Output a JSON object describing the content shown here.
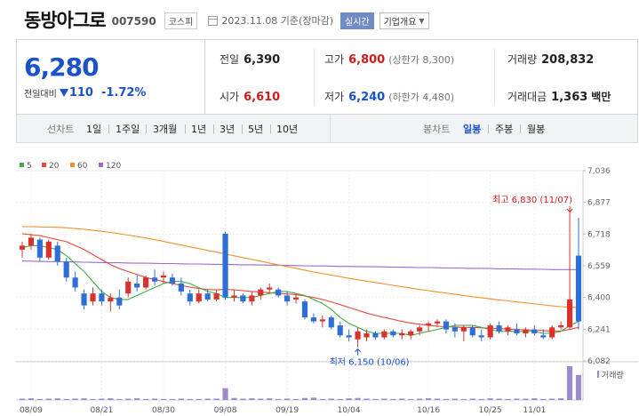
{
  "header": {
    "stock_name": "동방아그로",
    "stock_code": "007590",
    "market": "코스피",
    "date": "2023.11.08 기준(장마감)",
    "realtime": "실시간",
    "overview": "기업개요"
  },
  "price": {
    "current": "6,280",
    "change_label": "전일대비",
    "change_value": "110",
    "change_rate": "-1.72%"
  },
  "stats": {
    "prev_label": "전일",
    "prev_value": "6,390",
    "high_label": "고가",
    "high_value": "6,800",
    "upper_limit": "(상한가 8,300)",
    "volume_label": "거래량",
    "volume_value": "208,832",
    "open_label": "시가",
    "open_value": "6,610",
    "low_label": "저가",
    "low_value": "6,240",
    "lower_limit": "(하한가 4,480)",
    "amount_label": "거래대금",
    "amount_value": "1,363",
    "amount_unit": "백만"
  },
  "period_bar": {
    "line_label": "선차트",
    "periods": [
      "1일",
      "1주일",
      "3개월",
      "1년",
      "3년",
      "5년",
      "10년"
    ],
    "candle_label": "봉차트",
    "candle_periods": [
      "일봉",
      "주봉",
      "월봉"
    ],
    "active": "일봉"
  },
  "chart_data": {
    "type": "candlestick",
    "ma_legend": [
      {
        "name": "5",
        "color": "#3fae49"
      },
      {
        "name": "20",
        "color": "#e8453c"
      },
      {
        "name": "60",
        "color": "#f0922b"
      },
      {
        "name": "120",
        "color": "#9a6cc9"
      }
    ],
    "up_color": "#d9322c",
    "down_color": "#2d6fd6",
    "y_ticks": [
      7036,
      6877,
      6718,
      6559,
      6400,
      6241,
      6082
    ],
    "ylim": [
      6082,
      7036
    ],
    "x_ticks": [
      {
        "label": "08/09",
        "i": 1
      },
      {
        "label": "08/21",
        "i": 9
      },
      {
        "label": "08/30",
        "i": 16
      },
      {
        "label": "09/08",
        "i": 23
      },
      {
        "label": "09/19",
        "i": 30
      },
      {
        "label": "10/04",
        "i": 37
      },
      {
        "label": "10/16",
        "i": 46
      },
      {
        "label": "10/25",
        "i": 53
      },
      {
        "label": "11/01",
        "i": 58
      }
    ],
    "candles": [
      [
        6640,
        6680,
        6600,
        6660
      ],
      [
        6660,
        6720,
        6640,
        6700
      ],
      [
        6690,
        6700,
        6580,
        6600
      ],
      [
        6600,
        6690,
        6590,
        6680
      ],
      [
        6660,
        6680,
        6560,
        6580
      ],
      [
        6580,
        6600,
        6480,
        6500
      ],
      [
        6500,
        6530,
        6430,
        6450
      ],
      [
        6420,
        6440,
        6340,
        6360
      ],
      [
        6380,
        6450,
        6360,
        6420
      ],
      [
        6420,
        6440,
        6360,
        6380
      ],
      [
        6380,
        6420,
        6330,
        6400
      ],
      [
        6400,
        6440,
        6340,
        6360
      ],
      [
        6420,
        6500,
        6400,
        6480
      ],
      [
        6470,
        6510,
        6430,
        6450
      ],
      [
        6450,
        6510,
        6440,
        6500
      ],
      [
        6500,
        6540,
        6460,
        6480
      ],
      [
        6500,
        6530,
        6470,
        6510
      ],
      [
        6500,
        6520,
        6460,
        6470
      ],
      [
        6470,
        6500,
        6410,
        6430
      ],
      [
        6420,
        6440,
        6360,
        6380
      ],
      [
        6380,
        6440,
        6370,
        6420
      ],
      [
        6420,
        6440,
        6380,
        6390
      ],
      [
        6390,
        6440,
        6380,
        6420
      ],
      [
        6720,
        6730,
        6390,
        6400
      ],
      [
        6400,
        6440,
        6380,
        6410
      ],
      [
        6410,
        6420,
        6370,
        6380
      ],
      [
        6380,
        6430,
        6360,
        6410
      ],
      [
        6410,
        6450,
        6390,
        6440
      ],
      [
        6440,
        6470,
        6420,
        6450
      ],
      [
        6440,
        6450,
        6400,
        6410
      ],
      [
        6410,
        6430,
        6360,
        6380
      ],
      [
        6390,
        6420,
        6370,
        6400
      ],
      [
        6380,
        6390,
        6290,
        6300
      ],
      [
        6300,
        6320,
        6270,
        6280
      ],
      [
        6280,
        6310,
        6250,
        6290
      ],
      [
        6300,
        6310,
        6240,
        6250
      ],
      [
        6260,
        6280,
        6200,
        6210
      ],
      [
        6210,
        6240,
        6180,
        6200
      ],
      [
        6190,
        6250,
        6150,
        6230
      ],
      [
        6200,
        6240,
        6180,
        6220
      ],
      [
        6220,
        6230,
        6190,
        6200
      ],
      [
        6200,
        6240,
        6190,
        6230
      ],
      [
        6230,
        6240,
        6200,
        6210
      ],
      [
        6210,
        6240,
        6190,
        6220
      ],
      [
        6210,
        6240,
        6190,
        6230
      ],
      [
        6230,
        6260,
        6210,
        6250
      ],
      [
        6260,
        6280,
        6230,
        6270
      ],
      [
        6270,
        6290,
        6250,
        6280
      ],
      [
        6280,
        6290,
        6220,
        6240
      ],
      [
        6250,
        6270,
        6200,
        6230
      ],
      [
        6230,
        6260,
        6180,
        6250
      ],
      [
        6250,
        6260,
        6200,
        6210
      ],
      [
        6210,
        6240,
        6180,
        6200
      ],
      [
        6200,
        6270,
        6190,
        6260
      ],
      [
        6260,
        6280,
        6220,
        6230
      ],
      [
        6230,
        6260,
        6210,
        6250
      ],
      [
        6240,
        6270,
        6210,
        6220
      ],
      [
        6220,
        6250,
        6200,
        6240
      ],
      [
        6240,
        6260,
        6210,
        6220
      ],
      [
        6210,
        6240,
        6190,
        6200
      ],
      [
        6200,
        6260,
        6190,
        6250
      ],
      [
        6250,
        6280,
        6240,
        6260
      ],
      [
        6250,
        6830,
        6240,
        6390
      ],
      [
        6610,
        6800,
        6240,
        6280
      ]
    ],
    "ma5": [
      6650,
      6660,
      6660,
      6650,
      6640,
      6610,
      6570,
      6530,
      6480,
      6430,
      6400,
      6390,
      6390,
      6410,
      6430,
      6450,
      6470,
      6480,
      6480,
      6470,
      6450,
      6430,
      6420,
      6400,
      6400,
      6400,
      6400,
      6410,
      6420,
      6430,
      6430,
      6420,
      6410,
      6390,
      6370,
      6340,
      6300,
      6270,
      6250,
      6230,
      6220,
      6220,
      6220,
      6220,
      6210,
      6220,
      6230,
      6240,
      6250,
      6260,
      6260,
      6260,
      6250,
      6240,
      6230,
      6230,
      6230,
      6230,
      6230,
      6220,
      6220,
      6230,
      6260,
      6280
    ],
    "ma20": [
      6720,
      6715,
      6710,
      6700,
      6690,
      6680,
      6660,
      6640,
      6615,
      6590,
      6565,
      6545,
      6530,
      6515,
      6500,
      6490,
      6480,
      6470,
      6460,
      6452,
      6445,
      6440,
      6438,
      6440,
      6438,
      6434,
      6430,
      6428,
      6424,
      6420,
      6418,
      6414,
      6408,
      6400,
      6390,
      6378,
      6364,
      6350,
      6336,
      6322,
      6310,
      6300,
      6290,
      6280,
      6272,
      6266,
      6260,
      6256,
      6254,
      6252,
      6250,
      6250,
      6248,
      6246,
      6244,
      6242,
      6240,
      6238,
      6236,
      6234,
      6232,
      6232,
      6240,
      6250
    ],
    "ma60": [
      6755,
      6755,
      6754,
      6753,
      6752,
      6750,
      6746,
      6742,
      6737,
      6732,
      6726,
      6720,
      6713,
      6706,
      6698,
      6690,
      6681,
      6672,
      6663,
      6654,
      6645,
      6636,
      6627,
      6618,
      6609,
      6600,
      6591,
      6582,
      6573,
      6564,
      6555,
      6546,
      6537,
      6528,
      6520,
      6512,
      6504,
      6496,
      6489,
      6482,
      6475,
      6468,
      6461,
      6454,
      6447,
      6440,
      6434,
      6428,
      6422,
      6416,
      6410,
      6404,
      6398,
      6393,
      6388,
      6383,
      6378,
      6373,
      6368,
      6363,
      6358,
      6354,
      6352,
      6350
    ],
    "ma120": [
      6583,
      6582,
      6581,
      6580,
      6580,
      6579,
      6578,
      6577,
      6576,
      6575,
      6574,
      6574,
      6573,
      6572,
      6572,
      6571,
      6570,
      6570,
      6569,
      6568,
      6568,
      6567,
      6566,
      6566,
      6565,
      6564,
      6564,
      6563,
      6562,
      6562,
      6561,
      6560,
      6559,
      6558,
      6558,
      6557,
      6556,
      6556,
      6555,
      6554,
      6554,
      6553,
      6552,
      6552,
      6551,
      6550,
      6550,
      6549,
      6548,
      6548,
      6547,
      6546,
      6546,
      6545,
      6544,
      6544,
      6543,
      6542,
      6542,
      6541,
      6540,
      6540,
      6540,
      6540
    ],
    "volume": [
      0.04,
      0.05,
      0.03,
      0.04,
      0.05,
      0.03,
      0.04,
      0.05,
      0.03,
      0.04,
      0.05,
      0.03,
      0.04,
      0.05,
      0.03,
      0.04,
      0.03,
      0.03,
      0.04,
      0.03,
      0.03,
      0.04,
      0.04,
      0.35,
      0.06,
      0.04,
      0.05,
      0.04,
      0.05,
      0.03,
      0.04,
      0.03,
      0.06,
      0.07,
      0.03,
      0.04,
      0.03,
      0.05,
      0.06,
      0.04,
      0.03,
      0.04,
      0.03,
      0.04,
      0.03,
      0.04,
      0.05,
      0.04,
      0.03,
      0.04,
      0.03,
      0.04,
      0.03,
      0.05,
      0.04,
      0.03,
      0.04,
      0.04,
      0.05,
      0.03,
      0.04,
      0.05,
      1.0,
      0.74
    ],
    "annotation_high": "최고 6,830 (11/07)",
    "annotation_low": "최저 6,150 (10/06)",
    "volume_legend": "거래량"
  }
}
